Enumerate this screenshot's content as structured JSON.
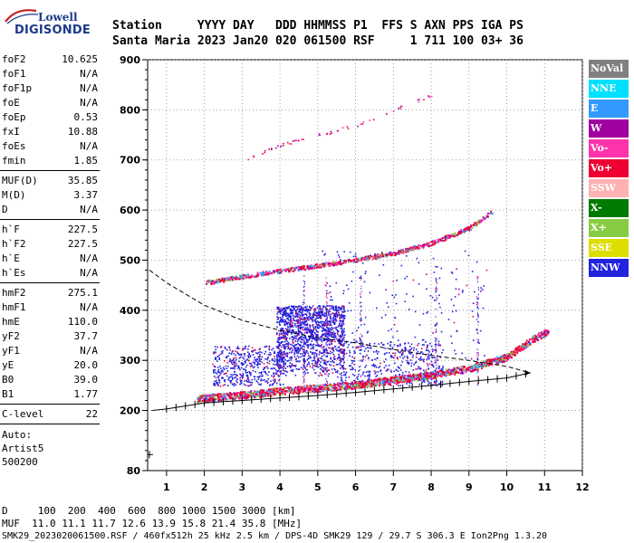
{
  "logo": {
    "line1": "Lowell",
    "line2": "DIGISONDE"
  },
  "header": {
    "labels": "Station     YYYY DAY   DDD HHMMSS P1  FFS S AXN PPS IGA PS",
    "values": "Santa Maria 2023 Jan20 020 061500 RSF     1 711 100 03+ 36"
  },
  "params": {
    "group1": [
      {
        "name": "foF2",
        "value": "10.625"
      },
      {
        "name": "foF1",
        "value": "N/A"
      },
      {
        "name": "foF1p",
        "value": "N/A"
      },
      {
        "name": "foE",
        "value": "N/A"
      },
      {
        "name": "foEp",
        "value": "0.53"
      },
      {
        "name": "fxI",
        "value": "10.88"
      },
      {
        "name": "foEs",
        "value": "N/A"
      },
      {
        "name": "fmin",
        "value": "1.85"
      }
    ],
    "group2": [
      {
        "name": "MUF(D)",
        "value": "35.85"
      },
      {
        "name": "M(D)",
        "value": "3.37"
      },
      {
        "name": "D",
        "value": "N/A"
      }
    ],
    "group3": [
      {
        "name": "h`F",
        "value": "227.5"
      },
      {
        "name": "h`F2",
        "value": "227.5"
      },
      {
        "name": "h`E",
        "value": "N/A"
      },
      {
        "name": "h`Es",
        "value": "N/A"
      }
    ],
    "group4": [
      {
        "name": "hmF2",
        "value": "275.1"
      },
      {
        "name": "hmF1",
        "value": "N/A"
      },
      {
        "name": "hmE",
        "value": "110.0"
      },
      {
        "name": "yF2",
        "value": "37.7"
      },
      {
        "name": "yF1",
        "value": "N/A"
      },
      {
        "name": "yE",
        "value": "20.0"
      },
      {
        "name": "B0",
        "value": "39.0"
      },
      {
        "name": "B1",
        "value": "1.77"
      }
    ],
    "group5": [
      {
        "name": "C-level",
        "value": "22"
      }
    ],
    "auto": [
      "Auto:",
      "Artist5",
      "500200"
    ]
  },
  "legend": [
    {
      "label": "NoVal",
      "bg": "#808080",
      "fg": "#ffffff"
    },
    {
      "label": "NNE",
      "bg": "#00e0ff",
      "fg": "#ffffff"
    },
    {
      "label": "E",
      "bg": "#3399ff",
      "fg": "#ffffff"
    },
    {
      "label": "W",
      "bg": "#a000a0",
      "fg": "#ffffff"
    },
    {
      "label": "Vo-",
      "bg": "#ff33aa",
      "fg": "#ffffff"
    },
    {
      "label": "Vo+",
      "bg": "#ee0033",
      "fg": "#ffffff"
    },
    {
      "label": "SSW",
      "bg": "#ffb0b0",
      "fg": "#ffffff"
    },
    {
      "label": "X-",
      "bg": "#007a00",
      "fg": "#ffffff"
    },
    {
      "label": "X+",
      "bg": "#88cc44",
      "fg": "#ffffff"
    },
    {
      "label": "SSE",
      "bg": "#dddd00",
      "fg": "#ffffff"
    },
    {
      "label": "NNW",
      "bg": "#2222dd",
      "fg": "#ffffff"
    }
  ],
  "footer": {
    "line1": "D     100  200  400  600  800 1000 1500 3000 [km]",
    "line2": "MUF  11.0 11.1 11.7 12.6 13.9 15.8 21.4 35.8 [MHz]",
    "line3": "SMK29_2023020061500.RSF / 460fx512h 25 kHz 2.5 km / DPS-4D SMK29 129 / 29.7 S 306.3 E Ion2Png 1.3.20"
  },
  "chart_data": {
    "type": "scatter",
    "xlim": [
      0.5,
      12
    ],
    "ylim": [
      80,
      900
    ],
    "xticks": [
      "1",
      "2",
      "3",
      "4",
      "5",
      "6",
      "7",
      "8",
      "9",
      "10",
      "11",
      "12"
    ],
    "yticks": [
      "80",
      "200",
      "300",
      "400",
      "500",
      "600",
      "700",
      "800",
      "900"
    ],
    "profile_curve": [
      [
        0.55,
        480
      ],
      [
        1,
        455
      ],
      [
        2,
        410
      ],
      [
        3,
        380
      ],
      [
        4,
        360
      ],
      [
        5,
        345
      ],
      [
        6,
        335
      ],
      [
        7,
        322
      ],
      [
        8,
        310
      ],
      [
        9,
        300
      ],
      [
        10,
        288
      ],
      [
        10.625,
        275
      ]
    ],
    "virtual_height_curve": [
      [
        0.6,
        200
      ],
      [
        1,
        203
      ],
      [
        2,
        215
      ],
      [
        3,
        220
      ],
      [
        4,
        225
      ],
      [
        5,
        230
      ],
      [
        6,
        236
      ],
      [
        7,
        243
      ],
      [
        8,
        250
      ],
      [
        9,
        258
      ],
      [
        10,
        265
      ],
      [
        10.625,
        275
      ]
    ],
    "o_trace_1": [
      [
        1.8,
        225
      ],
      [
        3,
        232
      ],
      [
        4,
        240
      ],
      [
        5,
        246
      ],
      [
        6,
        252
      ],
      [
        7,
        262
      ],
      [
        8,
        272
      ],
      [
        9,
        285
      ],
      [
        10,
        308
      ],
      [
        10.7,
        345
      ],
      [
        11.1,
        360
      ]
    ],
    "o_trace_2": [
      [
        2,
        456
      ],
      [
        3,
        468
      ],
      [
        4,
        480
      ],
      [
        5,
        490
      ],
      [
        6,
        502
      ],
      [
        7,
        515
      ],
      [
        8,
        535
      ],
      [
        9,
        565
      ],
      [
        9.6,
        598
      ]
    ],
    "o_trace_3": [
      [
        3,
        700
      ],
      [
        4,
        730
      ],
      [
        5,
        750
      ],
      [
        6,
        770
      ],
      [
        7,
        800
      ],
      [
        8,
        830
      ]
    ]
  }
}
